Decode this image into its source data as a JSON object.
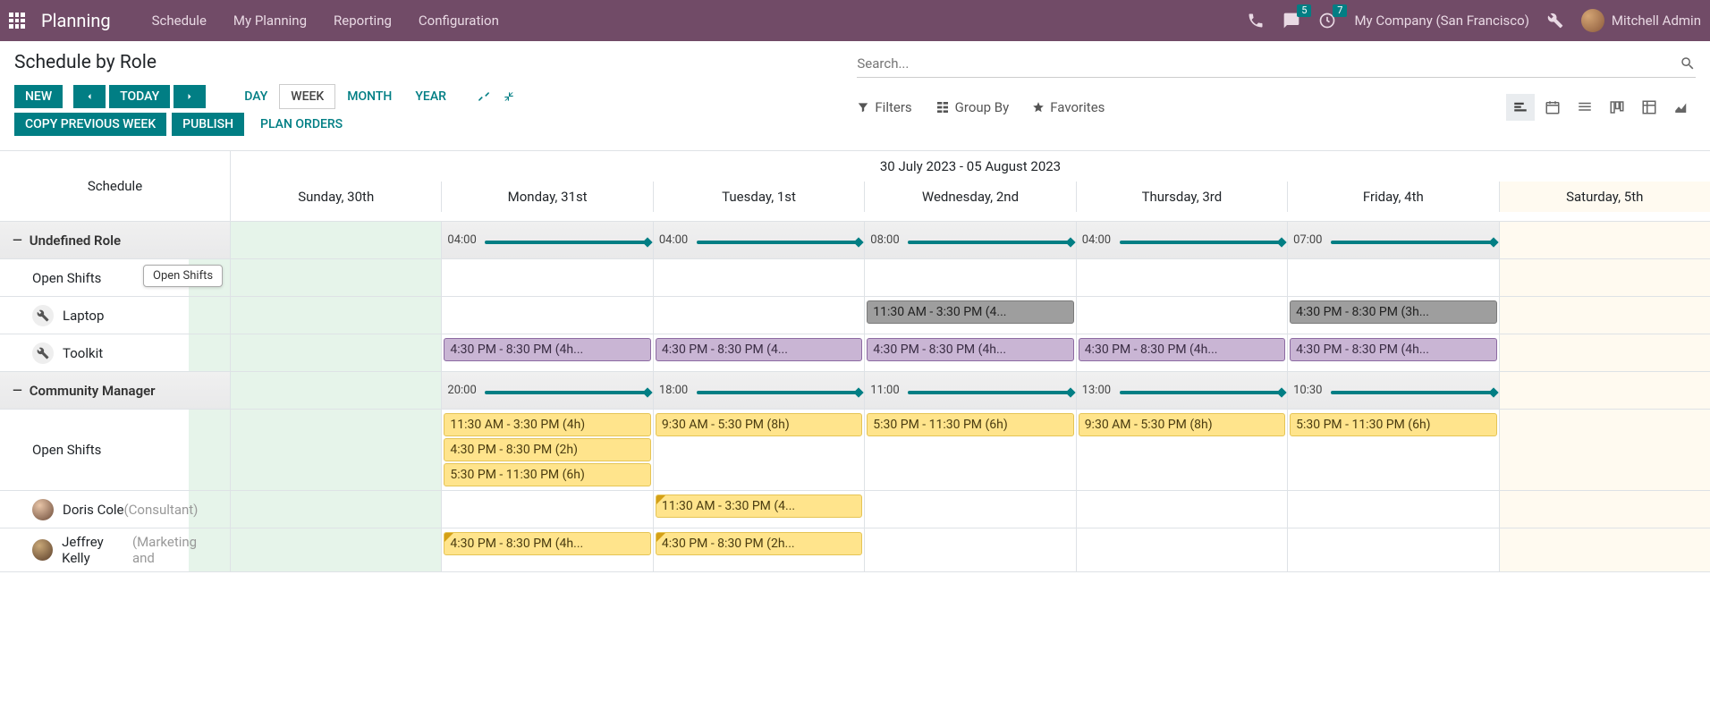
{
  "topbar": {
    "brand": "Planning",
    "menu": [
      "Schedule",
      "My Planning",
      "Reporting",
      "Configuration"
    ],
    "messages_badge": "5",
    "activities_badge": "7",
    "company": "My Company (San Francisco)",
    "user": "Mitchell Admin"
  },
  "page": {
    "title": "Schedule by Role",
    "search_placeholder": "Search..."
  },
  "buttons": {
    "new": "New",
    "today": "Today",
    "copy_prev": "Copy previous week",
    "publish": "Publish",
    "plan_orders": "Plan Orders"
  },
  "scales": {
    "day": "Day",
    "week": "Week",
    "month": "Month",
    "year": "Year",
    "active": "week"
  },
  "filters": {
    "filters": "Filters",
    "group_by": "Group By",
    "favorites": "Favorites"
  },
  "gantt": {
    "range_label": "30 July 2023 - 05 August 2023",
    "side_header": "Schedule",
    "days": [
      {
        "label": "Sunday, 30th",
        "type": "today"
      },
      {
        "label": "Monday, 31st",
        "type": ""
      },
      {
        "label": "Tuesday, 1st",
        "type": ""
      },
      {
        "label": "Wednesday, 2nd",
        "type": ""
      },
      {
        "label": "Thursday, 3rd",
        "type": ""
      },
      {
        "label": "Friday, 4th",
        "type": ""
      },
      {
        "label": "Saturday, 5th",
        "type": "weekend"
      }
    ],
    "groups": [
      {
        "name": "Undefined Role",
        "time_labels": [
          "",
          "04:00",
          "04:00",
          "08:00",
          "04:00",
          "07:00",
          ""
        ],
        "rows": [
          {
            "label": "Open Shifts",
            "sublabel": "",
            "icon": "",
            "tooltip": "Open Shifts",
            "shifts": [
              null,
              null,
              null,
              null,
              null,
              null,
              null
            ]
          },
          {
            "label": "Laptop",
            "sublabel": "",
            "icon": "wrench",
            "shifts": [
              null,
              null,
              null,
              [
                {
                  "text": "11:30 AM - 3:30 PM (4...",
                  "style": "gray"
                }
              ],
              null,
              [
                {
                  "text": "4:30 PM - 8:30 PM (3h...",
                  "style": "gray"
                }
              ],
              null
            ]
          },
          {
            "label": "Toolkit",
            "sublabel": "",
            "icon": "wrench",
            "shifts": [
              null,
              [
                {
                  "text": "4:30 PM - 8:30 PM (4h...",
                  "style": "purple"
                }
              ],
              [
                {
                  "text": "4:30 PM - 8:30 PM (4...",
                  "style": "purple"
                }
              ],
              [
                {
                  "text": "4:30 PM - 8:30 PM (4h...",
                  "style": "purple"
                }
              ],
              [
                {
                  "text": "4:30 PM - 8:30 PM (4h...",
                  "style": "purple"
                }
              ],
              [
                {
                  "text": "4:30 PM - 8:30 PM (4h...",
                  "style": "purple"
                }
              ],
              null
            ]
          }
        ]
      },
      {
        "name": "Community Manager",
        "time_labels": [
          "",
          "20:00",
          "18:00",
          "11:00",
          "13:00",
          "10:30",
          ""
        ],
        "rows": [
          {
            "label": "Open Shifts",
            "sublabel": "",
            "icon": "",
            "shifts": [
              null,
              [
                {
                  "text": "11:30 AM - 3:30 PM (4h)",
                  "style": "yellow"
                },
                {
                  "text": "4:30 PM - 8:30 PM (2h)",
                  "style": "yellow"
                },
                {
                  "text": "5:30 PM - 11:30 PM (6h)",
                  "style": "yellow"
                }
              ],
              [
                {
                  "text": "9:30 AM - 5:30 PM (8h)",
                  "style": "yellow"
                }
              ],
              [
                {
                  "text": "5:30 PM - 11:30 PM (6h)",
                  "style": "yellow"
                }
              ],
              [
                {
                  "text": "9:30 AM - 5:30 PM (8h)",
                  "style": "yellow"
                }
              ],
              [
                {
                  "text": "5:30 PM - 11:30 PM (6h)",
                  "style": "yellow"
                }
              ],
              null
            ]
          },
          {
            "label": "Doris Cole",
            "sublabel": " (Consultant)",
            "icon": "avatar-dc",
            "shifts": [
              null,
              null,
              [
                {
                  "text": "11:30 AM - 3:30 PM (4...",
                  "style": "yellow",
                  "corner": true
                }
              ],
              null,
              null,
              null,
              null
            ]
          },
          {
            "label": "Jeffrey Kelly",
            "sublabel": " (Marketing and",
            "icon": "avatar-jk",
            "shifts": [
              null,
              [
                {
                  "text": "4:30 PM - 8:30 PM (4h...",
                  "style": "yellow",
                  "corner": true
                }
              ],
              [
                {
                  "text": "4:30 PM - 8:30 PM (2h...",
                  "style": "yellow",
                  "corner": true
                }
              ],
              null,
              null,
              null,
              null
            ]
          }
        ]
      }
    ]
  },
  "colors": {
    "brand_bg": "#714b67",
    "teal": "#017e84",
    "shift_purple": "#c9b5d4",
    "shift_gray": "#9e9e9e",
    "shift_yellow": "#ffe48c"
  }
}
